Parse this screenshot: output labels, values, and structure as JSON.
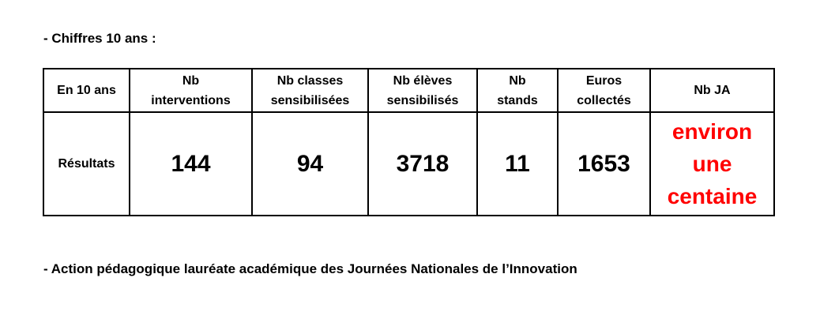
{
  "heading1": "- Chiffres 10 ans :",
  "table": {
    "corner_label": "En 10 ans",
    "headers": [
      [
        "Nb",
        "interventions"
      ],
      [
        "Nb classes",
        "sensibilisées"
      ],
      [
        "Nb élèves",
        "sensibilisés"
      ],
      [
        "Nb",
        "stands"
      ],
      [
        "Euros",
        "collectés"
      ],
      [
        "Nb JA"
      ]
    ],
    "row_label": "Résultats",
    "values": [
      "144",
      "94",
      "3718",
      "11",
      "1653"
    ],
    "ja_value": [
      "environ",
      "une",
      "centaine"
    ],
    "ja_color": "#ff0000"
  },
  "heading2": "- Action pédagogique lauréate académique des Journées Nationales de l’Innovation"
}
